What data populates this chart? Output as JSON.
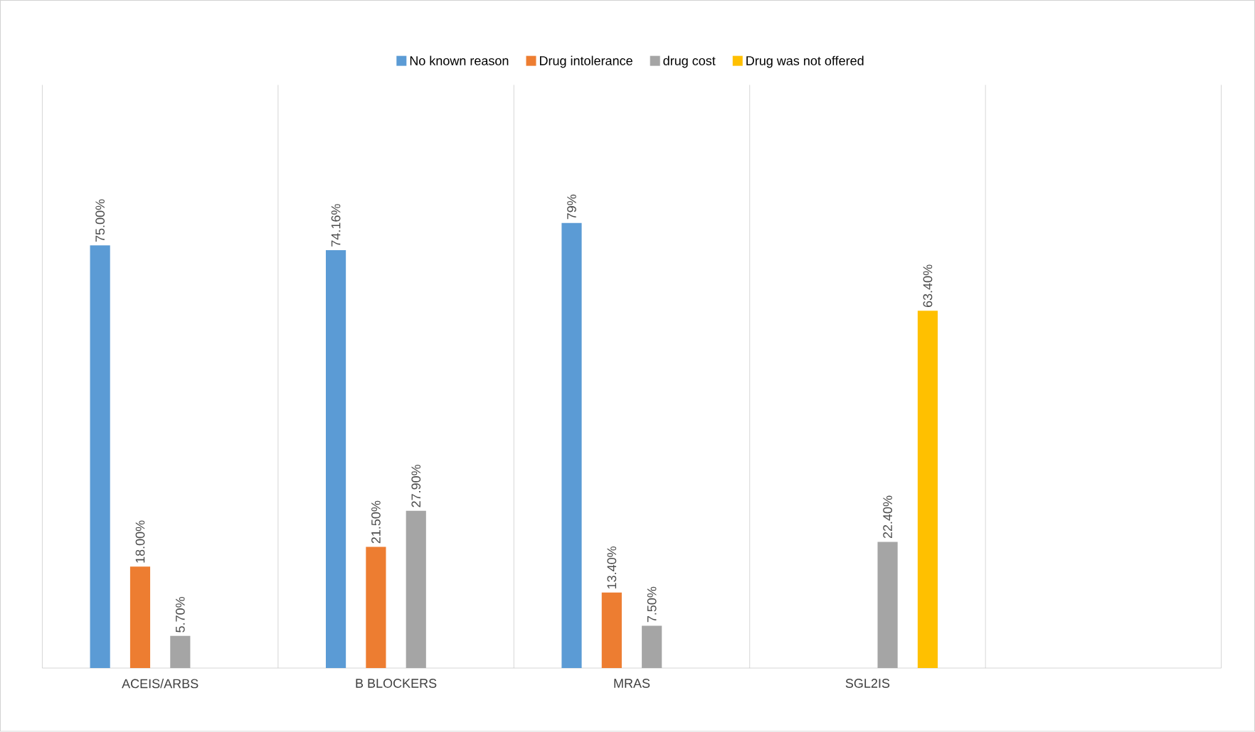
{
  "chart_data": {
    "type": "bar",
    "categories": [
      "ACEIS/ARBS",
      "B BLOCKERS",
      "MRAS",
      "SGL2IS",
      null
    ],
    "series": [
      {
        "name": "No known reason",
        "color": "#5b9bd5",
        "values": [
          75,
          74.16,
          79,
          null,
          null
        ],
        "value_labels": [
          "75.00%",
          "74.16%",
          "79%",
          null,
          null
        ]
      },
      {
        "name": "Drug intolerance",
        "color": "#ed7d31",
        "values": [
          18,
          21.5,
          13.4,
          null,
          null
        ],
        "value_labels": [
          "18.00%",
          "21.50%",
          "13.40%",
          null,
          null
        ]
      },
      {
        "name": "drug cost",
        "color": "#a5a5a5",
        "values": [
          5.7,
          27.9,
          7.5,
          22.4,
          null
        ],
        "value_labels": [
          "5.70%",
          "27.90%",
          "7.50%",
          "22.40%",
          null
        ]
      },
      {
        "name": "Drug was not offered",
        "color": "#ffc000",
        "values": [
          null,
          null,
          null,
          63.4,
          null
        ],
        "value_labels": [
          null,
          null,
          null,
          "63.40%",
          null
        ]
      }
    ],
    "grid": "x",
    "legend": "top"
  }
}
